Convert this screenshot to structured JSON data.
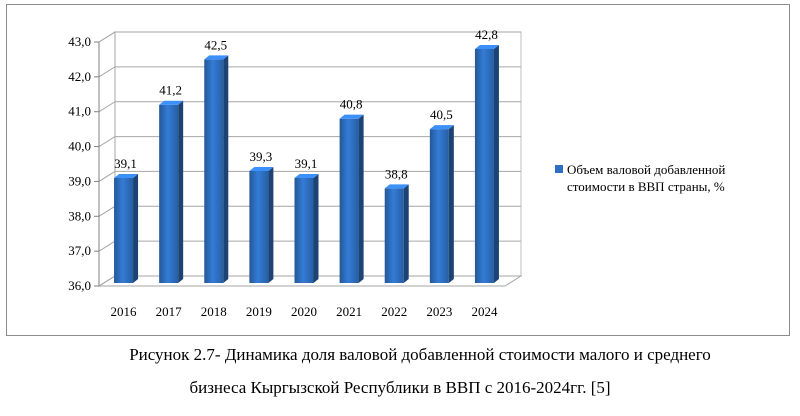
{
  "chart_data": {
    "type": "bar",
    "categories": [
      "2016",
      "2017",
      "2018",
      "2019",
      "2020",
      "2021",
      "2022",
      "2023",
      "2024"
    ],
    "series": [
      {
        "name": "Объем валовой добавленной стоимости в ВВП страны, %",
        "values": [
          39.1,
          41.2,
          42.5,
          39.3,
          39.1,
          40.8,
          38.8,
          40.5,
          42.8
        ],
        "value_labels": [
          "39,1",
          "41,2",
          "42,5",
          "39,3",
          "39,1",
          "40,8",
          "38,8",
          "40,5",
          "42,8"
        ],
        "color": "#2e6fc0"
      }
    ],
    "ylim": [
      36,
      43
    ],
    "yticks": [
      36,
      37,
      38,
      39,
      40,
      41,
      42,
      43
    ],
    "ytick_labels": [
      "36,0",
      "37,0",
      "38,0",
      "39,0",
      "40,0",
      "41,0",
      "42,0",
      "43,0"
    ],
    "grid": true,
    "legend_position": "right",
    "legend_lines": [
      "Объем валовой добавленной",
      "стоимости в ВВП страны, %"
    ],
    "title": "",
    "xlabel": "",
    "ylabel": ""
  },
  "caption": {
    "line1": "Рисунок 2.7- Динамика доля валовой добавленной стоимости малого и среднего",
    "line2": "бизнеса Кыргызской Республики  в  ВВП с 2016-2024гг. [5]"
  }
}
